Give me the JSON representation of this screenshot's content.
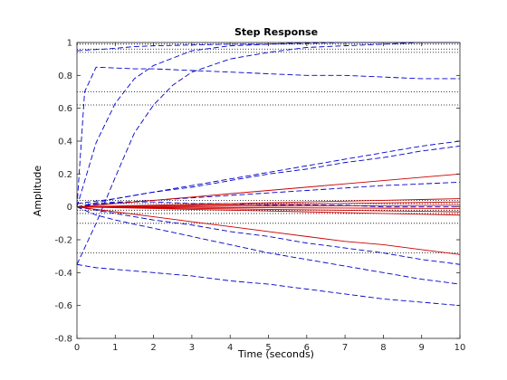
{
  "chart_data": {
    "type": "line",
    "title": "Step Response",
    "xlabel": "Time (seconds)",
    "ylabel": "Amplitude",
    "xlim": [
      0,
      10
    ],
    "ylim": [
      -0.8,
      1
    ],
    "x_ticks": [
      "0",
      "1",
      "2",
      "3",
      "4",
      "5",
      "6",
      "7",
      "8",
      "9",
      "10"
    ],
    "y_ticks": [
      "-0.8",
      "-0.6",
      "-0.4",
      "-0.2",
      "0",
      "0.2",
      "0.4",
      "0.6",
      "0.8",
      "1"
    ],
    "grid": false,
    "reference_lines_y": [
      1.0,
      0.99,
      0.96,
      0.94,
      0.7,
      0.62,
      0.04,
      0.02,
      -0.02,
      -0.04,
      -0.1,
      -0.28
    ],
    "colors": {
      "blue": "#0000cc",
      "red": "#cc0000",
      "ref": "#000000"
    },
    "series": [
      {
        "color": "blue",
        "style": "dashed",
        "x": [
          0,
          0.5,
          1,
          1.5,
          2,
          3,
          4,
          5,
          6,
          7,
          8,
          9,
          10
        ],
        "y": [
          0.0,
          0.39,
          0.63,
          0.78,
          0.86,
          0.95,
          0.98,
          0.99,
          1.0,
          1.0,
          1.0,
          1.0,
          1.0
        ]
      },
      {
        "color": "blue",
        "style": "dashed",
        "x": [
          0,
          0.5,
          1,
          1.5,
          2,
          2.5,
          3,
          4,
          5,
          6,
          7,
          8,
          9,
          10
        ],
        "y": [
          -0.35,
          -0.1,
          0.18,
          0.45,
          0.62,
          0.74,
          0.82,
          0.9,
          0.94,
          0.97,
          0.98,
          0.99,
          1.0,
          1.0
        ]
      },
      {
        "color": "blue",
        "style": "dashed",
        "x": [
          0,
          0.3,
          0.7,
          1,
          1.5,
          2,
          3,
          4,
          5,
          6,
          7,
          8,
          9,
          10
        ],
        "y": [
          0.95,
          0.955,
          0.96,
          0.965,
          0.975,
          0.98,
          0.985,
          0.99,
          0.99,
          0.995,
          1.0,
          1.0,
          1.0,
          1.0
        ]
      },
      {
        "color": "blue",
        "style": "dashed",
        "x": [
          0,
          0.2,
          0.5,
          1,
          1.5,
          2,
          3,
          4,
          5,
          6,
          7,
          8,
          9,
          10
        ],
        "y": [
          0.0,
          0.7,
          0.85,
          0.845,
          0.84,
          0.84,
          0.83,
          0.82,
          0.81,
          0.8,
          0.8,
          0.79,
          0.78,
          0.78
        ]
      },
      {
        "color": "blue",
        "style": "dashed",
        "x": [
          0,
          1,
          2,
          3,
          4,
          5,
          6,
          7,
          8,
          9,
          10
        ],
        "y": [
          0.0,
          0.05,
          0.09,
          0.13,
          0.17,
          0.21,
          0.25,
          0.29,
          0.33,
          0.37,
          0.4
        ]
      },
      {
        "color": "blue",
        "style": "dashed",
        "x": [
          0,
          1,
          2,
          3,
          4,
          5,
          6,
          7,
          8,
          9,
          10
        ],
        "y": [
          0.02,
          0.05,
          0.09,
          0.12,
          0.16,
          0.2,
          0.23,
          0.27,
          0.3,
          0.34,
          0.37
        ]
      },
      {
        "color": "blue",
        "style": "dashed",
        "x": [
          0,
          1,
          2,
          3,
          4,
          5,
          6,
          7,
          8,
          9,
          10
        ],
        "y": [
          0.0,
          0.025,
          0.04,
          0.055,
          0.07,
          0.085,
          0.1,
          0.115,
          0.13,
          0.14,
          0.15
        ]
      },
      {
        "color": "blue",
        "style": "dashed",
        "x": [
          0,
          1,
          2,
          3,
          4,
          5,
          6,
          7,
          8,
          9,
          10
        ],
        "y": [
          0.0,
          -0.04,
          -0.08,
          -0.11,
          -0.15,
          -0.18,
          -0.22,
          -0.25,
          -0.28,
          -0.32,
          -0.35
        ]
      },
      {
        "color": "blue",
        "style": "dashed",
        "x": [
          0,
          0.5,
          1,
          2,
          3,
          4,
          5,
          6,
          7,
          8,
          9,
          10
        ],
        "y": [
          0.0,
          -0.05,
          -0.08,
          -0.13,
          -0.18,
          -0.23,
          -0.28,
          -0.32,
          -0.36,
          -0.4,
          -0.44,
          -0.47
        ]
      },
      {
        "color": "blue",
        "style": "dashed",
        "x": [
          0,
          0.5,
          1,
          2,
          3,
          4,
          5,
          6,
          7,
          8,
          9,
          10
        ],
        "y": [
          -0.35,
          -0.37,
          -0.38,
          -0.4,
          -0.42,
          -0.45,
          -0.47,
          -0.5,
          -0.53,
          -0.56,
          -0.58,
          -0.6
        ]
      },
      {
        "color": "blue",
        "style": "dashed",
        "x": [
          0,
          0.5,
          1,
          2,
          3,
          4,
          5,
          6,
          7,
          8,
          9,
          10
        ],
        "y": [
          0.0,
          0.02,
          0.03,
          0.03,
          0.02,
          0.02,
          0.01,
          0.01,
          0.01,
          0.0,
          0.0,
          0.0
        ]
      },
      {
        "color": "red",
        "style": "solid",
        "x": [
          0,
          1,
          2,
          3,
          4,
          5,
          6,
          7,
          8,
          9,
          10
        ],
        "y": [
          0.0,
          0.02,
          0.04,
          0.06,
          0.08,
          0.1,
          0.12,
          0.14,
          0.16,
          0.18,
          0.2
        ]
      },
      {
        "color": "red",
        "style": "solid",
        "x": [
          0,
          1,
          2,
          3,
          4,
          5,
          6,
          7,
          8,
          9,
          10
        ],
        "y": [
          0.0,
          -0.03,
          -0.06,
          -0.09,
          -0.12,
          -0.15,
          -0.18,
          -0.21,
          -0.23,
          -0.26,
          -0.29
        ]
      },
      {
        "color": "red",
        "style": "solid",
        "x": [
          0,
          1,
          2,
          3,
          4,
          5,
          6,
          7,
          8,
          9,
          10
        ],
        "y": [
          0.0,
          0.005,
          0.01,
          0.015,
          0.02,
          0.025,
          0.03,
          0.035,
          0.04,
          0.045,
          0.05
        ]
      },
      {
        "color": "red",
        "style": "solid",
        "x": [
          0,
          1,
          2,
          3,
          4,
          5,
          6,
          7,
          8,
          9,
          10
        ],
        "y": [
          0.0,
          -0.005,
          -0.01,
          -0.015,
          -0.02,
          -0.025,
          -0.03,
          -0.035,
          -0.04,
          -0.045,
          -0.05
        ]
      },
      {
        "color": "red",
        "style": "solid",
        "x": [
          0,
          1,
          2,
          3,
          4,
          5,
          6,
          7,
          8,
          9,
          10
        ],
        "y": [
          0.0,
          0.003,
          0.006,
          0.009,
          0.012,
          0.015,
          0.018,
          0.021,
          0.024,
          0.027,
          0.03
        ]
      },
      {
        "color": "red",
        "style": "solid",
        "x": [
          0,
          1,
          2,
          3,
          4,
          5,
          6,
          7,
          8,
          9,
          10
        ],
        "y": [
          0.0,
          -0.003,
          -0.006,
          -0.009,
          -0.012,
          -0.015,
          -0.018,
          -0.021,
          -0.024,
          -0.027,
          -0.03
        ]
      },
      {
        "color": "red",
        "style": "solid",
        "x": [
          0,
          1,
          2,
          3,
          4,
          5,
          6,
          7,
          8,
          9,
          10
        ],
        "y": [
          0.0,
          0.001,
          0.002,
          0.003,
          0.004,
          0.005,
          0.006,
          0.007,
          0.008,
          0.009,
          0.01
        ]
      },
      {
        "color": "red",
        "style": "solid",
        "x": [
          0,
          1,
          2,
          3,
          4,
          5,
          6,
          7,
          8,
          9,
          10
        ],
        "y": [
          0.0,
          -0.001,
          -0.002,
          -0.003,
          -0.004,
          -0.005,
          -0.006,
          -0.007,
          -0.008,
          -0.009,
          -0.01
        ]
      }
    ]
  }
}
